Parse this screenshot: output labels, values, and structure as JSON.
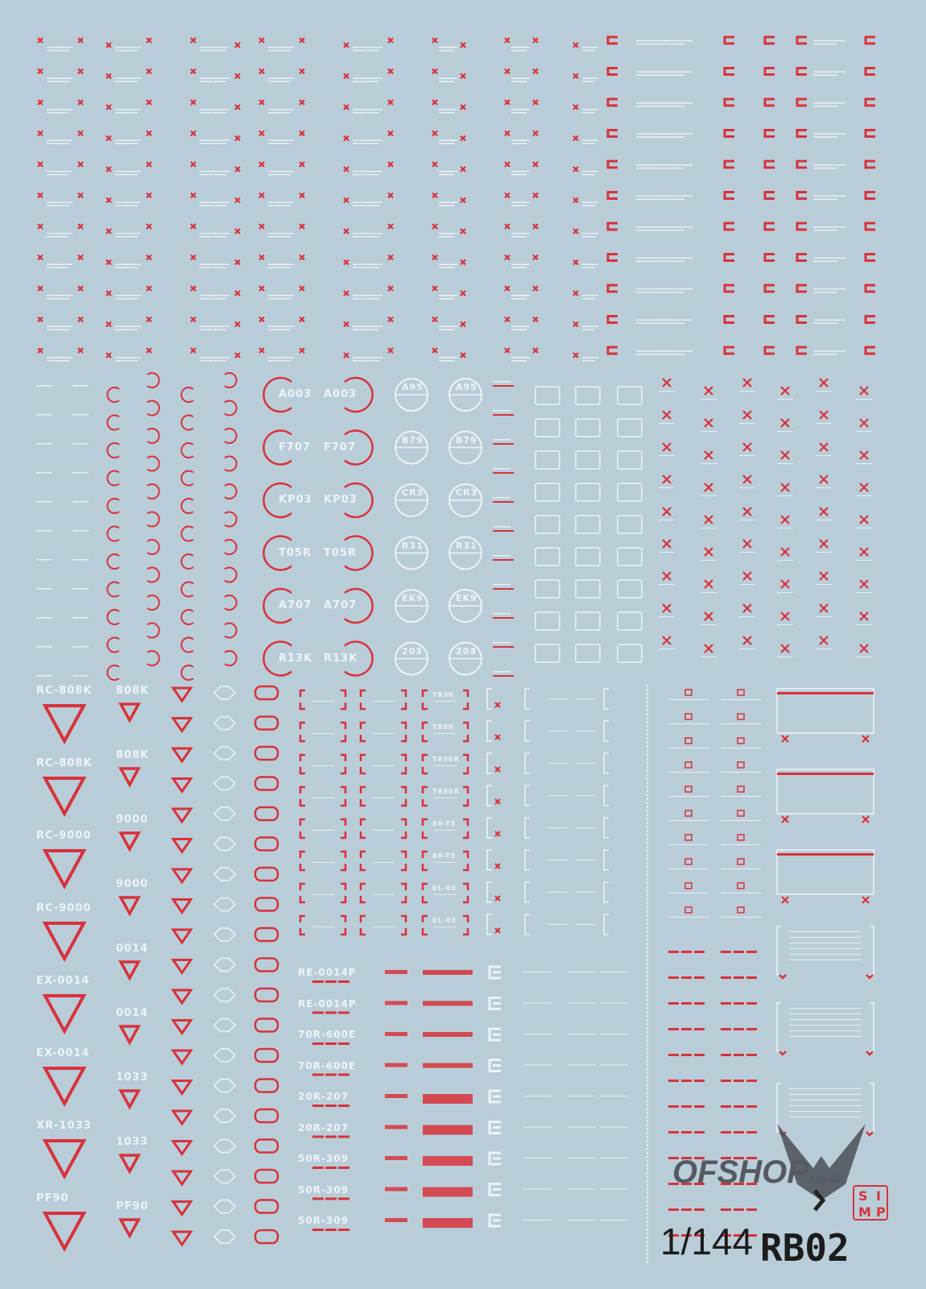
{
  "colors": {
    "background": "#b9cdd9",
    "red": "#d8323b",
    "white": "#eef3f7",
    "logo": "#1c1c1c",
    "watermark": "#555a60"
  },
  "big_circle_codes": [
    "A003",
    "F707",
    "KP03",
    "T05R",
    "A707",
    "R13K"
  ],
  "white_circle_codes": [
    "A95",
    "B79",
    "CR3",
    "R31",
    "EK9",
    "203"
  ],
  "triangle_labels_large": [
    "RC-808K",
    "RC-808K",
    "RC-9000",
    "RC-9000",
    "EX-0014",
    "EX-0014",
    "XR-1033",
    "PF90"
  ],
  "triangle_labels_small": [
    "808K",
    "808K",
    "9000",
    "9000",
    "0014",
    "0014",
    "1033",
    "1033",
    "PF90"
  ],
  "bracket_codes": [
    "TB30",
    "TB50",
    "TR50R",
    "TR50R",
    "80-TS",
    "80-TS",
    "EL-03",
    "EL-03"
  ],
  "stripe_labels": [
    "RE-0014P",
    "RE-0014P",
    "70R-600E",
    "70R-600E",
    "20R-207",
    "20R-207",
    "50R-309",
    "50R-309",
    "50R-309"
  ],
  "logo": {
    "scale": "1/144",
    "code": "RB02",
    "badge": "SIMP",
    "watermark": "OFSHOP .co.uk"
  }
}
